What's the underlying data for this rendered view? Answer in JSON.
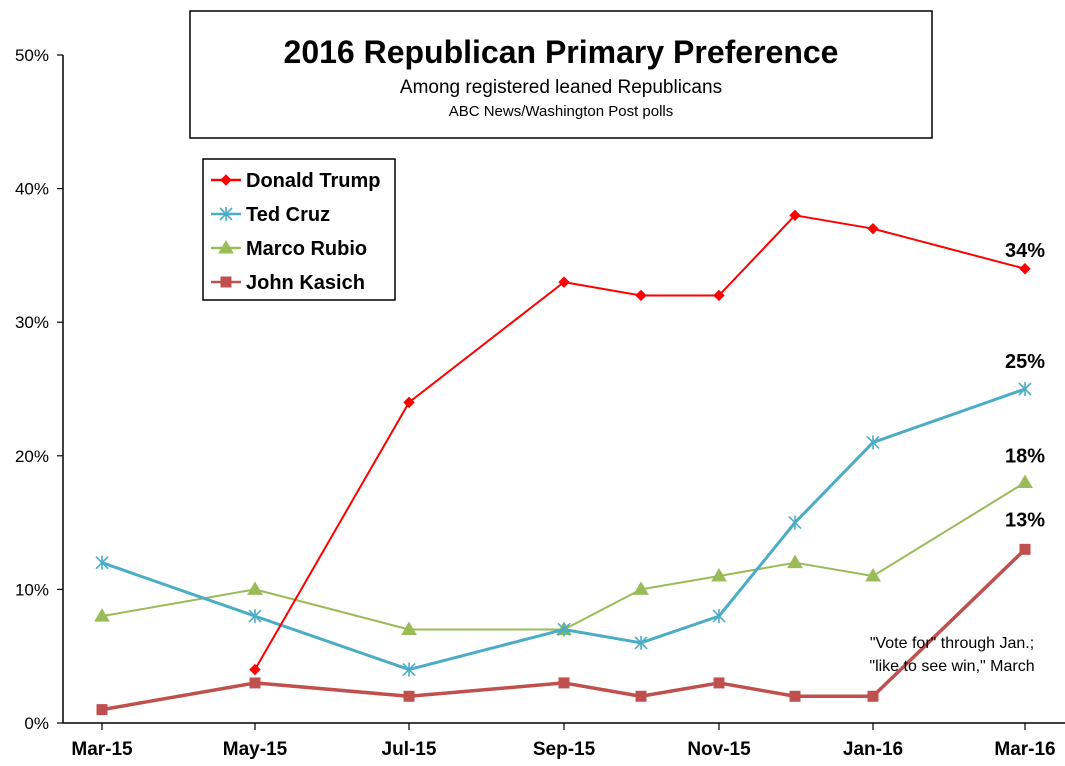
{
  "chart_data": {
    "type": "line",
    "title": "2016 Republican Primary Preference",
    "subtitle": "Among registered leaned Republicans",
    "source": "ABC News/Washington  Post polls",
    "y_ticks": [
      "0%",
      "10%",
      "20%",
      "30%",
      "40%",
      "50%"
    ],
    "x_tick_labels": [
      "Mar-15",
      "May-15",
      "Jul-15",
      "Sep-15",
      "Nov-15",
      "Jan-16",
      "Mar-16"
    ],
    "ylim": [
      0,
      50
    ],
    "grid": false,
    "legend_position": "top-left",
    "x_points": [
      "Mar-15",
      "May-15",
      "Jul-15",
      "Sep-15",
      "Oct-15",
      "Nov-15",
      "Dec-15",
      "Jan-16",
      "Mar-16"
    ],
    "series": [
      {
        "name": "Donald Trump",
        "color": "#ff0000",
        "marker": "diamond",
        "values": [
          null,
          4,
          24,
          33,
          32,
          32,
          38,
          37,
          34
        ],
        "end_label": "34%"
      },
      {
        "name": "Ted Cruz",
        "color": "#4bacc6",
        "marker": "asterisk",
        "values": [
          12,
          8,
          4,
          7,
          6,
          8,
          15,
          21,
          25
        ],
        "end_label": "25%"
      },
      {
        "name": "Marco Rubio",
        "color": "#9bbb59",
        "marker": "triangle",
        "values": [
          8,
          10,
          7,
          7,
          10,
          11,
          12,
          11,
          18
        ],
        "end_label": "18%"
      },
      {
        "name": "John Kasich",
        "color": "#c0504d",
        "marker": "square",
        "values": [
          1,
          3,
          2,
          3,
          2,
          3,
          2,
          2,
          13
        ],
        "end_label": "13%"
      }
    ],
    "annotation": [
      "\"Vote for\" through  Jan.;",
      "\"like to see win,\" March"
    ]
  }
}
